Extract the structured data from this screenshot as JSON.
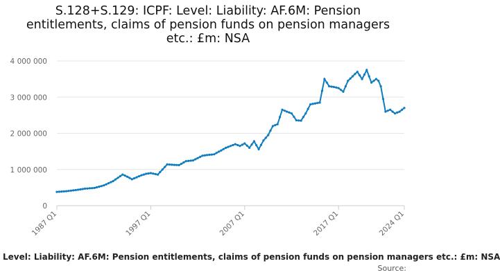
{
  "chart_data": {
    "type": "line",
    "title": "S.128+S.129: ICPF: Level: Liability: AF.6M: Pension entitlements, claims of pension funds on pension managers etc.: £m: NSA",
    "xlabel": "",
    "ylabel": "",
    "x_tick_labels": [
      "1987 Q1",
      "1997 Q1",
      "2007 Q1",
      "2017 Q1",
      "2024 Q1"
    ],
    "y_tick_labels": [
      "0",
      "1 000 000",
      "2 000 000",
      "3 000 000",
      "4 000 000"
    ],
    "ylim": [
      0,
      4000000
    ],
    "grid": true,
    "line_color": "#0e7cbf",
    "series": [
      {
        "name": "Level: Liability: AF.6M: Pension entitlements, claims of pension funds on pension managers etc.: £m: NSA",
        "x": [
          1987.0,
          1988.0,
          1989.0,
          1990.0,
          1991.0,
          1992.0,
          1993.0,
          1994.0,
          1994.5,
          1995.0,
          1996.0,
          1996.5,
          1997.0,
          1997.75,
          1998.75,
          2000.0,
          2000.75,
          2001.5,
          2002.5,
          2003.0,
          2003.75,
          2005.0,
          2006.0,
          2006.5,
          2007.0,
          2007.5,
          2008.0,
          2008.5,
          2009.0,
          2009.5,
          2010.0,
          2010.5,
          2011.0,
          2012.0,
          2012.5,
          2013.0,
          2013.5,
          2014.0,
          2015.0,
          2015.5,
          2016.0,
          2016.5,
          2017.0,
          2017.5,
          2018.0,
          2019.0,
          2019.5,
          2020.0,
          2020.5,
          2021.0,
          2021.25,
          2021.5,
          2022.0,
          2022.5,
          2023.0,
          2023.5,
          2024.0,
          2024.25
        ],
        "values": [
          380000,
          400000,
          430000,
          470000,
          490000,
          560000,
          680000,
          860000,
          800000,
          730000,
          840000,
          880000,
          900000,
          860000,
          1140000,
          1120000,
          1230000,
          1250000,
          1380000,
          1400000,
          1420000,
          1600000,
          1700000,
          1650000,
          1720000,
          1600000,
          1780000,
          1560000,
          1800000,
          1950000,
          2200000,
          2250000,
          2650000,
          2550000,
          2360000,
          2350000,
          2550000,
          2800000,
          2850000,
          3500000,
          3300000,
          3280000,
          3250000,
          3150000,
          3450000,
          3700000,
          3500000,
          3750000,
          3400000,
          3500000,
          3450000,
          3300000,
          2600000,
          2650000,
          2550000,
          2600000,
          2700000,
          2650000
        ]
      }
    ]
  },
  "legend": {
    "label": "Level: Liability: AF.6M: Pension entitlements, claims of pension funds on pension managers etc.: £m: NSA"
  },
  "source": {
    "label": "Source:"
  }
}
